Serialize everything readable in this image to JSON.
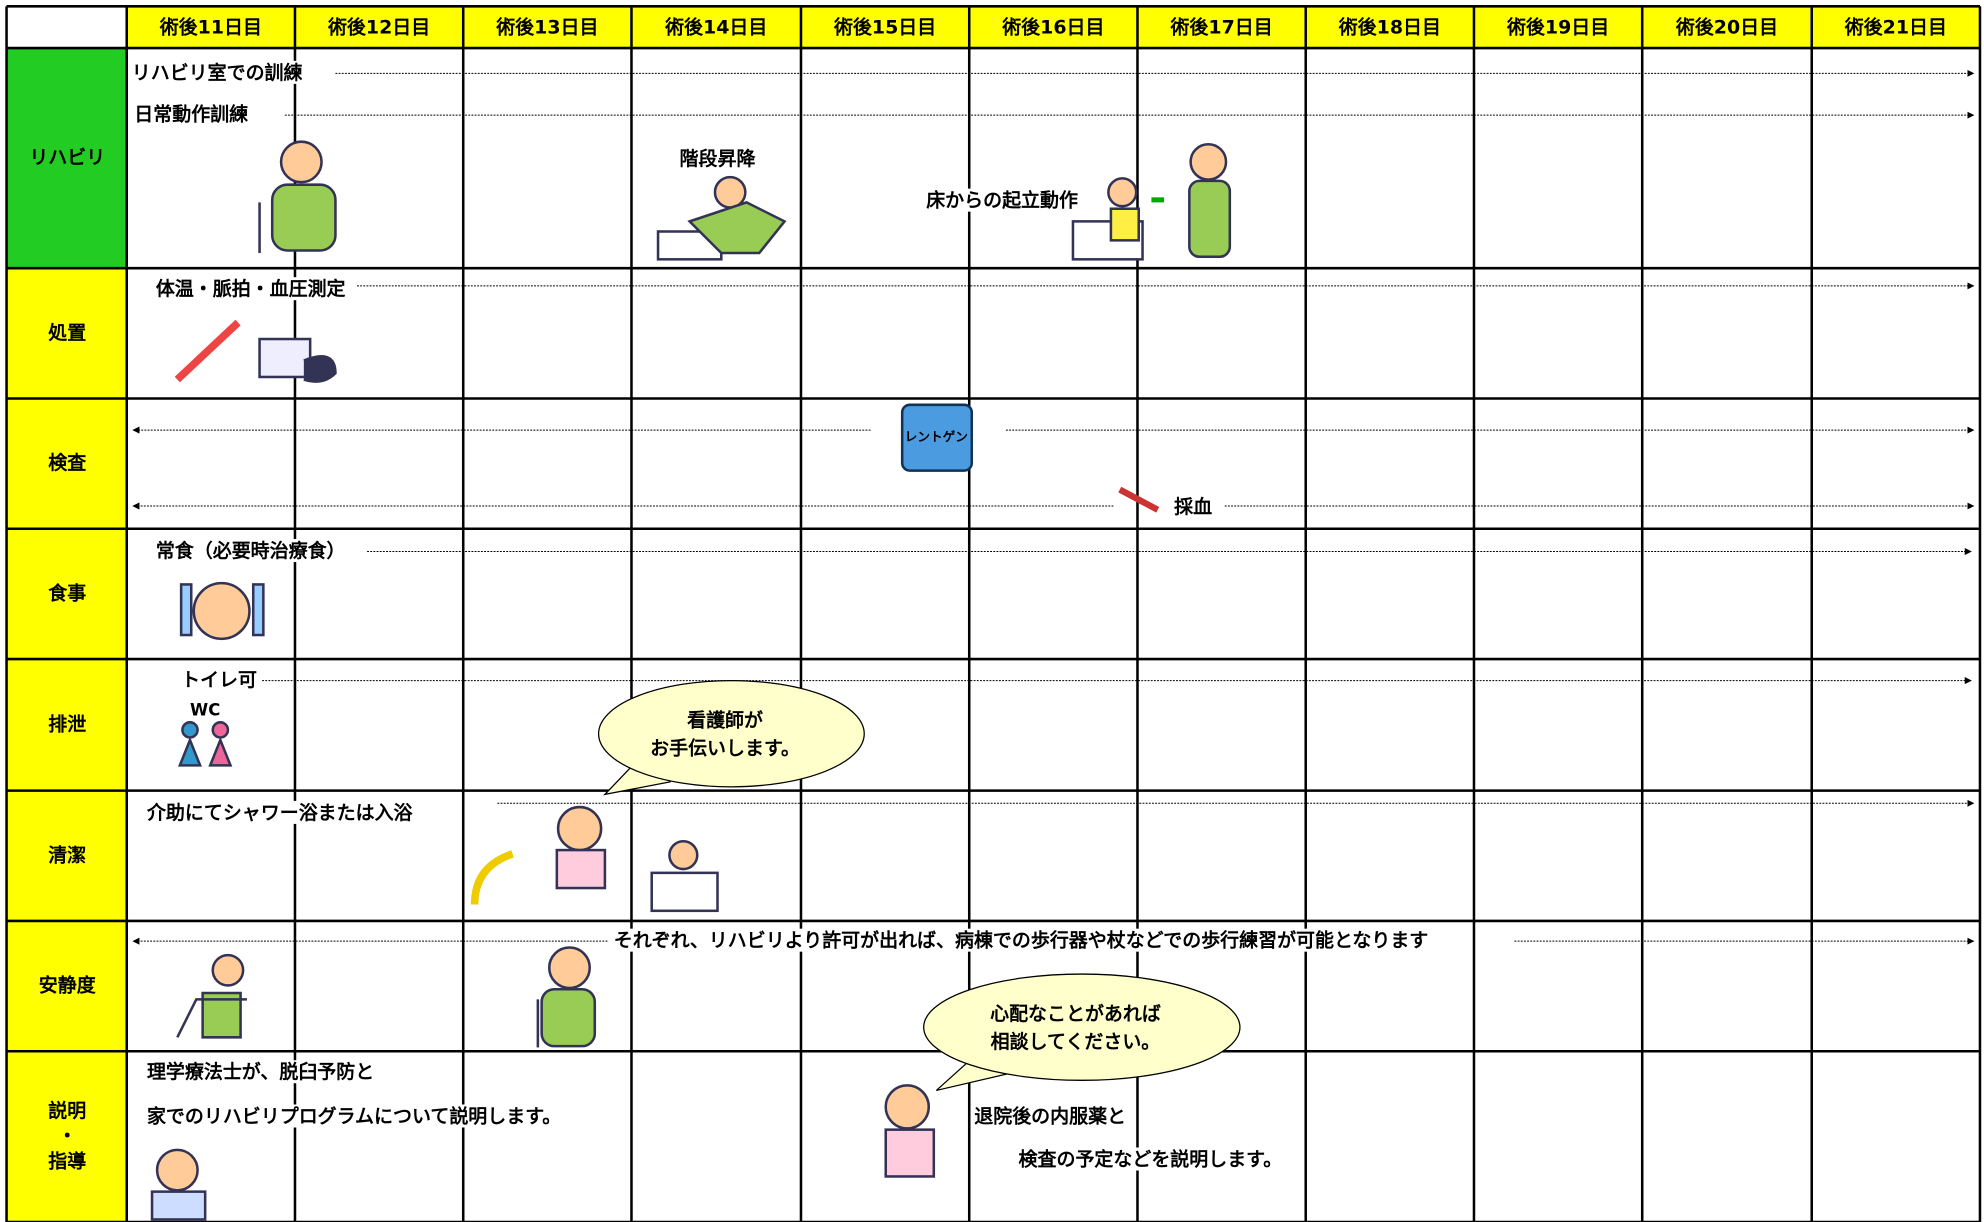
{
  "header": {
    "days": [
      "術後11日目",
      "術後12日目",
      "術後13日目",
      "術後14日目",
      "術後15日目",
      "術後16日目",
      "術後17日目",
      "術後18日目",
      "術後19日目",
      "術後20日目",
      "術後21日目"
    ]
  },
  "rows": [
    {
      "label": "リハビリ",
      "items": [
        "リハビリ室での訓練",
        "日常動作訓練",
        "階段昇降",
        "床からの起立動作"
      ]
    },
    {
      "label": "処置",
      "items": [
        "体温・脈拍・血圧測定"
      ]
    },
    {
      "label": "検査",
      "items": [
        "レントゲン",
        "採血"
      ]
    },
    {
      "label": "食事",
      "items": [
        "常食（必要時治療食）"
      ]
    },
    {
      "label": "排泄",
      "items": [
        "トイレ可",
        "WC"
      ]
    },
    {
      "label": "清潔",
      "items": [
        "介助にてシャワー浴または入浴"
      ]
    },
    {
      "label": "安静度",
      "items": [
        "それぞれ、リハビリより許可が出れば、病棟での歩行器や杖などでの歩行練習が可能となります"
      ]
    },
    {
      "label": [
        "説明",
        "・",
        "指導"
      ],
      "items": [
        "理学療法士が、脱臼予防と",
        "家でのリハビリプログラムについて説明します。",
        "退院後の内服薬と",
        "検査の予定などを説明します。"
      ]
    }
  ],
  "callouts": [
    [
      "看護師が",
      "お手伝いします。"
    ],
    [
      "心配なことがあれば",
      "相談してください。"
    ]
  ]
}
